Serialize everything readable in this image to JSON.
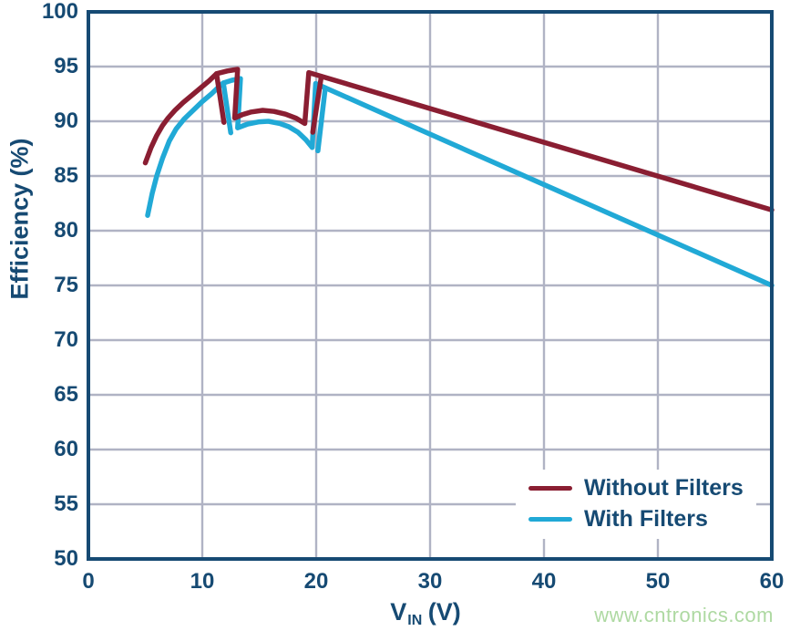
{
  "colors": {
    "navy_text": "#164a73",
    "axis_spine": "#164a73",
    "gridline": "#b0b3c4",
    "series_without_filters": "#8a1e32",
    "series_with_filters": "#21a9d6",
    "watermark_green": "#aed9a2",
    "background": "#ffffff"
  },
  "axes": {
    "y_label": "Efficiency (%)",
    "x_label": {
      "prefix": "V",
      "sub": "IN",
      "suffix": " (V)"
    },
    "x_ticks": [
      0,
      10,
      20,
      30,
      40,
      50,
      60
    ],
    "y_ticks": [
      50,
      55,
      60,
      65,
      70,
      75,
      80,
      85,
      90,
      95,
      100
    ]
  },
  "watermark": {
    "text": "www.cntronics.com"
  },
  "chart_data": {
    "type": "line",
    "title": "",
    "xlabel": "VIN (V)",
    "ylabel": "Efficiency (%)",
    "xlim": [
      0,
      60
    ],
    "ylim": [
      50,
      100
    ],
    "grid": true,
    "legend_position": "lower right",
    "series": [
      {
        "name": "Without Filters",
        "color": "#8a1e32",
        "points": [
          [
            5.0,
            86.2
          ],
          [
            5.5,
            87.6
          ],
          [
            6.0,
            88.7
          ],
          [
            6.5,
            89.6
          ],
          [
            7.0,
            90.3
          ],
          [
            7.6,
            91.0
          ],
          [
            8.3,
            91.7
          ],
          [
            9.0,
            92.3
          ],
          [
            9.8,
            93.0
          ],
          [
            10.6,
            93.7
          ],
          [
            11.25,
            94.35
          ],
          [
            12.2,
            94.6
          ],
          [
            13.1,
            94.75
          ],
          [
            12.85,
            90.3
          ],
          [
            13.5,
            90.6
          ],
          [
            14.3,
            90.85
          ],
          [
            15.3,
            91.0
          ],
          [
            16.3,
            90.9
          ],
          [
            17.3,
            90.65
          ],
          [
            18.2,
            90.3
          ],
          [
            19.0,
            89.8
          ],
          [
            19.35,
            94.45
          ],
          [
            60.0,
            81.9
          ]
        ],
        "transition_drops": [
          [
            [
              11.25,
              94.35
            ],
            [
              11.9,
              89.9
            ]
          ],
          [
            [
              20.45,
              94.1
            ],
            [
              19.7,
              89.0
            ]
          ]
        ]
      },
      {
        "name": "With Filters",
        "color": "#21a9d6",
        "points": [
          [
            5.2,
            81.4
          ],
          [
            5.6,
            83.4
          ],
          [
            6.0,
            85.0
          ],
          [
            6.5,
            86.6
          ],
          [
            7.1,
            88.2
          ],
          [
            7.7,
            89.3
          ],
          [
            8.4,
            90.2
          ],
          [
            9.2,
            91.0
          ],
          [
            10.0,
            91.8
          ],
          [
            10.8,
            92.5
          ],
          [
            11.5,
            93.2
          ],
          [
            11.85,
            93.5
          ],
          [
            12.6,
            93.75
          ],
          [
            13.35,
            93.9
          ],
          [
            13.1,
            89.4
          ],
          [
            14.0,
            89.75
          ],
          [
            15.0,
            89.95
          ],
          [
            15.8,
            90.0
          ],
          [
            16.8,
            89.8
          ],
          [
            17.6,
            89.5
          ],
          [
            18.4,
            89.0
          ],
          [
            19.1,
            88.3
          ],
          [
            19.65,
            87.6
          ],
          [
            19.95,
            93.45
          ],
          [
            60.0,
            75.0
          ]
        ],
        "transition_drops": [
          [
            [
              11.85,
              93.5
            ],
            [
              12.5,
              88.95
            ]
          ],
          [
            [
              20.8,
              93.05
            ],
            [
              20.15,
              87.3
            ]
          ]
        ]
      }
    ]
  }
}
